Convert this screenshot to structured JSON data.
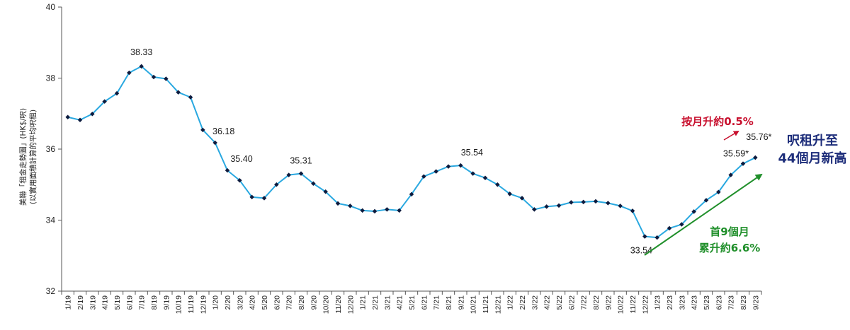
{
  "chart_data": {
    "type": "line",
    "ylabel": "美聯「租金走勢圖」(HK$/呎)",
    "ylabel_sub": "(以實用面積計算的平均呎租)",
    "ylim": [
      32,
      40
    ],
    "yticks": [
      "32",
      "34",
      "36",
      "38",
      "40"
    ],
    "grid": false,
    "categories": [
      "1/19",
      "2/19",
      "3/19",
      "4/19",
      "5/19",
      "6/19",
      "7/19",
      "8/19",
      "9/19",
      "10/19",
      "11/19",
      "12/19",
      "1/20",
      "2/20",
      "3/20",
      "4/20",
      "5/20",
      "6/20",
      "7/20",
      "8/20",
      "9/20",
      "10/20",
      "11/20",
      "12/20",
      "1/21",
      "2/21",
      "3/21",
      "4/21",
      "5/21",
      "6/21",
      "7/21",
      "8/21",
      "9/21",
      "10/21",
      "11/21",
      "12/21",
      "1/22",
      "2/22",
      "3/22",
      "4/22",
      "5/22",
      "6/22",
      "7/22",
      "8/22",
      "9/22",
      "10/22",
      "11/22",
      "12/22",
      "1/23",
      "2/23",
      "3/23",
      "4/23",
      "5/23",
      "6/23",
      "7/23",
      "8/23",
      "9/23"
    ],
    "series": [
      {
        "values": [
          36.9,
          36.82,
          36.99,
          37.34,
          37.57,
          38.15,
          38.33,
          38.03,
          37.98,
          37.6,
          37.46,
          36.54,
          36.18,
          35.4,
          35.12,
          34.65,
          34.62,
          35.0,
          35.27,
          35.31,
          35.03,
          34.8,
          34.47,
          34.4,
          34.27,
          34.25,
          34.3,
          34.27,
          34.73,
          35.23,
          35.37,
          35.51,
          35.54,
          35.31,
          35.19,
          35.0,
          34.74,
          34.62,
          34.3,
          34.38,
          34.41,
          34.5,
          34.51,
          34.53,
          34.48,
          34.4,
          34.26,
          33.54,
          33.51,
          33.77,
          33.88,
          34.24,
          34.56,
          34.79,
          35.27,
          35.59,
          35.76
        ]
      }
    ],
    "data_labels": [
      {
        "index": 6,
        "text": "38.33"
      },
      {
        "index": 12,
        "text": "36.18"
      },
      {
        "index": 13,
        "text": "35.40"
      },
      {
        "index": 19,
        "text": "35.31"
      },
      {
        "index": 32,
        "text": "35.54"
      },
      {
        "index": 47,
        "text": "33.54"
      },
      {
        "index": 55,
        "text": "35.59*"
      },
      {
        "index": 56,
        "text": "35.76*"
      }
    ],
    "annotations": {
      "monthly": "按月升約0.5%",
      "cumulative_line1": "首9個月",
      "cumulative_line2": "累升約6.6%",
      "headline_line1": "呎租升至",
      "headline_line2": "44個月新高"
    },
    "colors": {
      "line": "#29a8e0",
      "marker": "#0d1b3e",
      "monthly": "#c8102e",
      "cumulative": "#1f8f2a",
      "headline": "#1d2d7a"
    }
  }
}
